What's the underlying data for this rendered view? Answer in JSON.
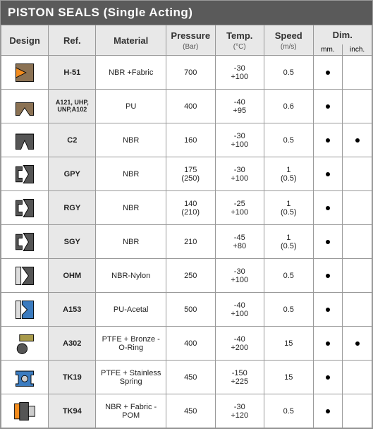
{
  "title": "PISTON SEALS (Single Acting)",
  "headers": {
    "design": "Design",
    "ref": "Ref.",
    "material": "Material",
    "pressure": "Pressure",
    "pressure_unit": "(Bar)",
    "temp": "Temp.",
    "temp_unit": "(°C)",
    "speed": "Speed",
    "speed_unit": "(m/s)",
    "dim": "Dim.",
    "dim_mm": "mm.",
    "dim_inch": "inch."
  },
  "colors": {
    "title_bg": "#5a5a5a",
    "header_bg": "#e8e8e8",
    "border": "#999999",
    "orange": "#f28c1e",
    "brown": "#8b7254",
    "darkgray": "#555555",
    "blue": "#3b7bbf",
    "olive": "#a89a4a",
    "black": "#000000"
  },
  "rows": [
    {
      "ref": "H-51",
      "material": "NBR +Fabric",
      "pressure": "700",
      "temp_low": "-30",
      "temp_high": "+100",
      "speed": "0.5",
      "mm": true,
      "inch": false,
      "icon": "h51"
    },
    {
      "ref": "A121, UHP, UNP,A102",
      "ref_small": true,
      "material": "PU",
      "pressure": "400",
      "temp_low": "-40",
      "temp_high": "+95",
      "speed": "0.6",
      "mm": true,
      "inch": false,
      "icon": "a121"
    },
    {
      "ref": "C2",
      "material": "NBR",
      "pressure": "160",
      "temp_low": "-30",
      "temp_high": "+100",
      "speed": "0.5",
      "mm": true,
      "inch": true,
      "icon": "c2"
    },
    {
      "ref": "GPY",
      "material": "NBR",
      "pressure": "175\n(250)",
      "temp_low": "-30",
      "temp_high": "+100",
      "speed": "1\n(0.5)",
      "mm": true,
      "inch": false,
      "icon": "gpy"
    },
    {
      "ref": "RGY",
      "material": "NBR",
      "pressure": "140\n(210)",
      "temp_low": "-25",
      "temp_high": "+100",
      "speed": "1\n(0.5)",
      "mm": true,
      "inch": false,
      "icon": "rgy"
    },
    {
      "ref": "SGY",
      "material": "NBR",
      "pressure": "210",
      "temp_low": "-45",
      "temp_high": "+80",
      "speed": "1\n(0.5)",
      "mm": true,
      "inch": false,
      "icon": "sgy"
    },
    {
      "ref": "OHM",
      "material": "NBR-Nylon",
      "pressure": "250",
      "temp_low": "-30",
      "temp_high": "+100",
      "speed": "0.5",
      "mm": true,
      "inch": false,
      "icon": "ohm"
    },
    {
      "ref": "A153",
      "material": "PU-Acetal",
      "pressure": "500",
      "temp_low": "-40",
      "temp_high": "+100",
      "speed": "0.5",
      "mm": true,
      "inch": false,
      "icon": "a153"
    },
    {
      "ref": "A302",
      "material": "PTFE + Bronze - O-Ring",
      "pressure": "400",
      "temp_low": "-40",
      "temp_high": "+200",
      "speed": "15",
      "mm": true,
      "inch": true,
      "icon": "a302"
    },
    {
      "ref": "TK19",
      "material": "PTFE + Stainless Spring",
      "pressure": "450",
      "temp_low": "-150",
      "temp_high": "+225",
      "speed": "15",
      "mm": true,
      "inch": false,
      "icon": "tk19"
    },
    {
      "ref": "TK94",
      "material": "NBR + Fabric - POM",
      "pressure": "450",
      "temp_low": "-30",
      "temp_high": "+120",
      "speed": "0.5",
      "mm": true,
      "inch": false,
      "icon": "tk94"
    }
  ]
}
